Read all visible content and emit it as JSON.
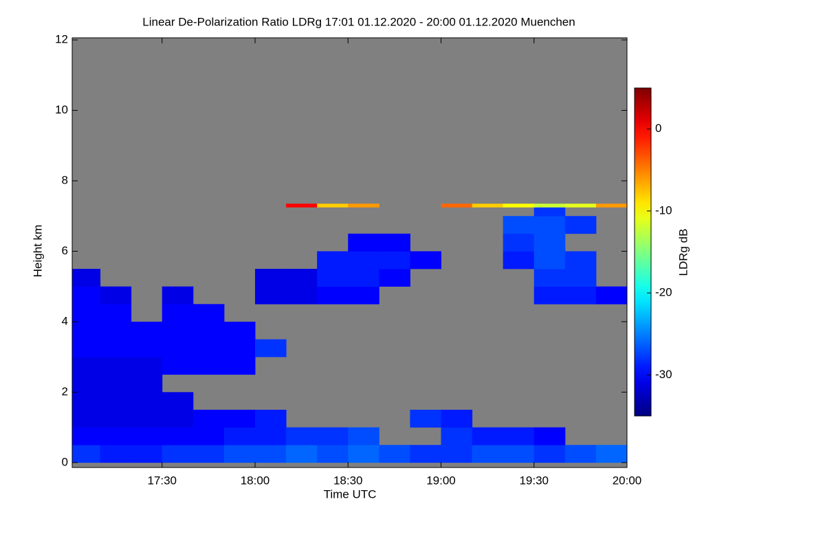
{
  "chart_data": {
    "type": "heatmap",
    "title": "Linear De-Polarization Ratio LDRg   17:01 01.12.2020 - 20:00 01.12.2020 Muenchen",
    "x_label": "Time UTC",
    "y_label": "Height km",
    "colorbar_label": "LDRg dB",
    "colormap": "jet",
    "missing_color": "#808080",
    "xlim": [
      17.0167,
      20.0
    ],
    "ylim": [
      -0.14,
      12.06
    ],
    "zlim": [
      -35,
      5
    ],
    "xticks": [
      {
        "value": 17.5,
        "label": "17:30"
      },
      {
        "value": 18,
        "label": "18:00"
      },
      {
        "value": 18.5,
        "label": "18:30"
      },
      {
        "value": 19,
        "label": "19:00"
      },
      {
        "value": 19.5,
        "label": "19:30"
      },
      {
        "value": 20,
        "label": "20:00"
      }
    ],
    "yticks": [
      0,
      2,
      4,
      6,
      8,
      10,
      12
    ],
    "zticks": [
      -30,
      -20,
      -10,
      0
    ],
    "xbins": [
      17.0,
      17.1667,
      17.3333,
      17.5,
      17.6667,
      17.8333,
      18.0,
      18.1667,
      18.3333,
      18.5,
      18.6667,
      18.8333,
      19.0,
      19.1667,
      19.3333,
      19.5,
      19.6667,
      19.8333,
      20.0
    ],
    "ybins": [
      0,
      0.5,
      1,
      1.5,
      2,
      2.5,
      3,
      3.5,
      4,
      4.5,
      5,
      5.5,
      6,
      6.5,
      7,
      7.25,
      7.35
    ],
    "z": [
      [
        -28,
        -29,
        -29,
        -28,
        -28,
        -27,
        -27,
        -26,
        -27,
        -26,
        -27,
        -28,
        -28,
        -27,
        -27,
        -28,
        -27,
        -26
      ],
      [
        -30,
        -30,
        -30,
        -30,
        -30,
        -29,
        -29,
        -28,
        -28,
        -27,
        null,
        null,
        -28,
        -29,
        -29,
        -30,
        null,
        null
      ],
      [
        -31,
        -31,
        -31,
        -31,
        -30,
        -30,
        -29,
        null,
        null,
        null,
        null,
        -28,
        -29,
        null,
        null,
        null,
        null,
        null
      ],
      [
        -31,
        -31,
        -31,
        -31,
        null,
        null,
        null,
        null,
        null,
        null,
        null,
        null,
        null,
        null,
        null,
        null,
        null,
        null
      ],
      [
        -31,
        -31,
        -31,
        null,
        null,
        null,
        null,
        null,
        null,
        null,
        null,
        null,
        null,
        null,
        null,
        null,
        null,
        null
      ],
      [
        -31,
        -31,
        -31,
        -30,
        -30,
        -30,
        null,
        null,
        null,
        null,
        null,
        null,
        null,
        null,
        null,
        null,
        null,
        null
      ],
      [
        -30,
        -30,
        -30,
        -30,
        -30,
        -30,
        -28,
        null,
        null,
        null,
        null,
        null,
        null,
        null,
        null,
        null,
        null,
        null
      ],
      [
        -30,
        -30,
        -30,
        -30,
        -30,
        -30,
        null,
        null,
        null,
        null,
        null,
        null,
        null,
        null,
        null,
        null,
        null,
        null
      ],
      [
        -30,
        -30,
        null,
        -30,
        -30,
        null,
        null,
        null,
        null,
        null,
        null,
        null,
        null,
        null,
        null,
        null,
        null,
        null
      ],
      [
        -30,
        -31,
        null,
        -31,
        null,
        null,
        -31,
        -31,
        -30,
        -30,
        null,
        null,
        null,
        null,
        null,
        -29,
        -29,
        -30
      ],
      [
        -31,
        null,
        null,
        null,
        null,
        null,
        -31,
        -31,
        -29,
        -29,
        -30,
        null,
        null,
        null,
        null,
        -28,
        -28,
        null
      ],
      [
        null,
        null,
        null,
        null,
        null,
        null,
        null,
        null,
        -29,
        -29,
        -29,
        -30,
        null,
        null,
        -29,
        -27,
        -28,
        null
      ],
      [
        null,
        null,
        null,
        null,
        null,
        null,
        null,
        null,
        null,
        -30,
        -30,
        null,
        null,
        null,
        -28,
        -27,
        null,
        null
      ],
      [
        null,
        null,
        null,
        null,
        null,
        null,
        null,
        null,
        null,
        null,
        null,
        null,
        null,
        null,
        -27,
        -27,
        -28,
        null
      ],
      [
        null,
        null,
        null,
        null,
        null,
        null,
        null,
        null,
        null,
        null,
        null,
        null,
        null,
        null,
        null,
        -28,
        null,
        null
      ],
      [
        null,
        null,
        null,
        null,
        null,
        null,
        null,
        0,
        -8,
        -6,
        null,
        null,
        -4,
        -8,
        -10,
        -12,
        -11,
        -6
      ]
    ]
  }
}
